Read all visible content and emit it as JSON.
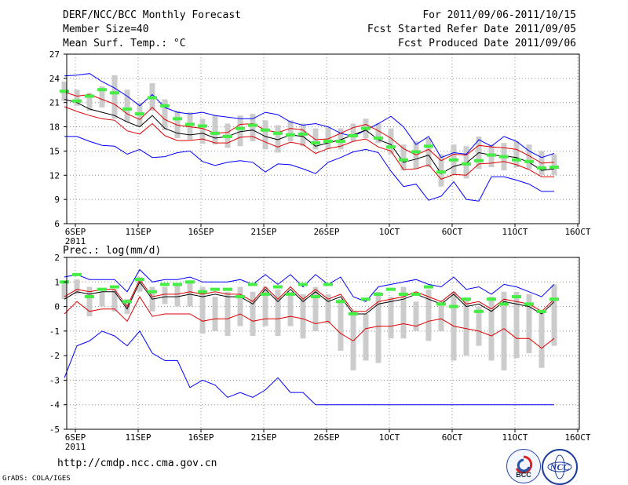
{
  "header": {
    "title": "DERF/NCC/BCC Monthly Forecast",
    "member_size": "Member Size=40",
    "variable1": "Mean Surf. Temp.: °C",
    "period": "For 2011/09/06-2011/10/15",
    "started": "Fcst Started Refer Date 2011/09/05",
    "produced": "Fcst Produced Date 2011/09/06"
  },
  "footer": {
    "url": "http://cmdp.ncc.cma.gov.cn",
    "grads": "GrADS: COLA/IGES",
    "logo_bcc": "BCC",
    "logo_ncc": "NCC"
  },
  "colors": {
    "max": "#0000ff",
    "min": "#0000ff",
    "pct_band": "#dd0000",
    "mean": "#000000",
    "hist": "#44ee44",
    "spread": "#cccccc"
  },
  "chart_data": [
    {
      "type": "line",
      "title": "Mean Surf. Temp.: °C",
      "xlabel": "",
      "ylabel": "°C",
      "x_ticks": [
        {
          "day": 1,
          "label": "6SEP",
          "sub": "2011"
        },
        {
          "day": 6,
          "label": "11SEP"
        },
        {
          "day": 11,
          "label": "16SEP"
        },
        {
          "day": 16,
          "label": "21SEP"
        },
        {
          "day": 21,
          "label": "26SEP"
        },
        {
          "day": 26,
          "label": "1OCT"
        },
        {
          "day": 31,
          "label": "6OCT"
        },
        {
          "day": 36,
          "label": "11OCT"
        },
        {
          "day": 41,
          "label": "16OCT"
        }
      ],
      "ylim": [
        6,
        27
      ],
      "yticks": [
        6,
        9,
        12,
        15,
        18,
        21,
        24,
        27
      ],
      "days": [
        1,
        2,
        3,
        4,
        5,
        6,
        7,
        8,
        9,
        10,
        11,
        12,
        13,
        14,
        15,
        16,
        17,
        18,
        19,
        20,
        21,
        22,
        23,
        24,
        25,
        26,
        27,
        28,
        29,
        30,
        31,
        32,
        33,
        34,
        35,
        36,
        37,
        38,
        39,
        40
      ],
      "series": [
        {
          "name": "max",
          "color_key": "max",
          "values": [
            24.3,
            24.4,
            24.6,
            23.6,
            22.8,
            21.8,
            20.6,
            22.0,
            20.4,
            19.8,
            19.6,
            19.8,
            19.4,
            19.2,
            19.0,
            19.0,
            19.8,
            19.5,
            18.6,
            18.2,
            18.4,
            18.0,
            17.2,
            16.8,
            17.6,
            18.4,
            19.3,
            18.0,
            15.8,
            16.8,
            14.2,
            14.8,
            14.6,
            16.4,
            15.6,
            16.8,
            16.2,
            15.0,
            14.2,
            14.7
          ]
        },
        {
          "name": "p90",
          "color_key": "pct_band",
          "values": [
            22.3,
            21.8,
            22.0,
            21.4,
            20.8,
            19.6,
            18.9,
            20.4,
            18.9,
            18.2,
            18.0,
            17.8,
            17.2,
            17.3,
            18.3,
            18.4,
            17.6,
            17.3,
            17.8,
            17.6,
            16.4,
            16.5,
            17.2,
            17.9,
            18.3,
            17.5,
            16.6,
            15.3,
            14.5,
            15.2,
            13.8,
            14.6,
            14.5,
            15.7,
            15.5,
            15.4,
            15.2,
            14.4,
            13.5,
            13.6
          ]
        },
        {
          "name": "mean",
          "color_key": "mean",
          "values": [
            21.4,
            21.0,
            20.2,
            19.8,
            19.4,
            18.6,
            18.0,
            19.4,
            17.8,
            17.2,
            17.0,
            17.2,
            16.6,
            16.8,
            17.4,
            17.6,
            16.8,
            16.4,
            17.0,
            16.8,
            15.6,
            16.0,
            16.4,
            17.0,
            17.6,
            16.4,
            15.8,
            13.6,
            14.0,
            14.5,
            12.2,
            13.1,
            13.5,
            14.8,
            14.5,
            14.4,
            14.2,
            13.6,
            12.6,
            12.8
          ]
        },
        {
          "name": "p10",
          "color_key": "pct_band",
          "values": [
            20.5,
            19.9,
            19.4,
            19.0,
            18.8,
            17.5,
            17.1,
            18.4,
            16.9,
            16.3,
            16.3,
            16.5,
            16.0,
            16.0,
            16.7,
            16.8,
            16.1,
            15.5,
            16.1,
            15.8,
            14.7,
            15.3,
            15.6,
            16.2,
            16.5,
            15.5,
            15.0,
            12.7,
            12.8,
            13.3,
            11.5,
            12.1,
            12.0,
            13.4,
            13.5,
            13.7,
            13.3,
            12.7,
            11.8,
            11.8
          ]
        },
        {
          "name": "min",
          "color_key": "min",
          "values": [
            16.8,
            16.8,
            16.2,
            15.7,
            15.6,
            14.6,
            15.2,
            14.2,
            14.3,
            14.8,
            15.0,
            13.7,
            13.2,
            13.6,
            13.8,
            13.6,
            12.4,
            13.4,
            13.3,
            12.8,
            12.2,
            13.6,
            14.2,
            14.9,
            15.2,
            14.8,
            12.5,
            10.6,
            10.9,
            8.9,
            9.4,
            11.2,
            9.0,
            8.8,
            11.8,
            11.8,
            11.4,
            10.9,
            10.0,
            10.0
          ]
        }
      ],
      "spread_bars": [
        [
          21.2,
          23.6
        ],
        [
          20.6,
          22.6
        ],
        [
          20.0,
          22.2
        ],
        [
          20.4,
          23.0
        ],
        [
          19.0,
          24.4
        ],
        [
          18.6,
          22.6
        ],
        [
          18.0,
          21.0
        ],
        [
          20.0,
          23.4
        ],
        [
          17.6,
          21.4
        ],
        [
          16.6,
          20.0
        ],
        [
          16.4,
          19.8
        ],
        [
          15.9,
          19.0
        ],
        [
          15.8,
          19.4
        ],
        [
          15.4,
          18.4
        ],
        [
          15.6,
          19.4
        ],
        [
          16.2,
          19.6
        ],
        [
          15.2,
          18.8
        ],
        [
          14.8,
          18.2
        ],
        [
          16.2,
          18.8
        ],
        [
          15.6,
          18.4
        ],
        [
          15.2,
          17.8
        ],
        [
          15.2,
          18.0
        ],
        [
          15.2,
          17.8
        ],
        [
          16.2,
          18.4
        ],
        [
          16.6,
          19.0
        ],
        [
          16.0,
          18.4
        ],
        [
          14.6,
          17.8
        ],
        [
          12.6,
          15.8
        ],
        [
          12.8,
          16.2
        ],
        [
          13.0,
          16.6
        ],
        [
          10.6,
          14.6
        ],
        [
          12.0,
          15.8
        ],
        [
          11.6,
          15.6
        ],
        [
          12.8,
          16.8
        ],
        [
          13.0,
          15.8
        ],
        [
          12.6,
          16.0
        ],
        [
          13.0,
          16.2
        ],
        [
          12.8,
          15.8
        ],
        [
          12.0,
          15.0
        ],
        [
          12.0,
          14.6
        ]
      ],
      "hist_marks": [
        22.4,
        21.2,
        21.8,
        22.6,
        22.2,
        20.2,
        19.6,
        21.6,
        20.6,
        19.0,
        18.3,
        18.1,
        17.2,
        16.8,
        17.8,
        18.2,
        17.6,
        17.2,
        17.0,
        17.1,
        16.0,
        16.2,
        16.2,
        16.9,
        17.8,
        16.6,
        15.5,
        13.9,
        14.9,
        15.6,
        12.4,
        13.9,
        13.4,
        13.8,
        14.5,
        14.3,
        13.9,
        13.7,
        12.9,
        13.0
      ]
    },
    {
      "type": "line",
      "title": "Prec.: log(mm/d)",
      "xlabel": "",
      "ylabel": "log(mm/d)",
      "x_ticks": [
        {
          "day": 1,
          "label": "6SEP",
          "sub": "2011"
        },
        {
          "day": 6,
          "label": "11SEP"
        },
        {
          "day": 11,
          "label": "16SEP"
        },
        {
          "day": 16,
          "label": "21SEP"
        },
        {
          "day": 21,
          "label": "26SEP"
        },
        {
          "day": 26,
          "label": "1OCT"
        },
        {
          "day": 31,
          "label": "6OCT"
        },
        {
          "day": 36,
          "label": "11OCT"
        },
        {
          "day": 41,
          "label": "16OCT"
        }
      ],
      "ylim": [
        -5,
        2
      ],
      "yticks": [
        -5,
        -4,
        -3,
        -2,
        -1,
        0,
        1,
        2
      ],
      "days": [
        1,
        2,
        3,
        4,
        5,
        6,
        7,
        8,
        9,
        10,
        11,
        12,
        13,
        14,
        15,
        16,
        17,
        18,
        19,
        20,
        21,
        22,
        23,
        24,
        25,
        26,
        27,
        28,
        29,
        30,
        31,
        32,
        33,
        34,
        35,
        36,
        37,
        38,
        39,
        40
      ],
      "series": [
        {
          "name": "max",
          "color_key": "max",
          "values": [
            1.2,
            1.3,
            1.1,
            1.1,
            1.1,
            0.6,
            1.5,
            1.0,
            1.1,
            1.1,
            1.2,
            1.0,
            1.0,
            1.0,
            1.1,
            0.9,
            1.3,
            0.9,
            1.3,
            0.8,
            1.3,
            0.9,
            1.2,
            0.4,
            0.2,
            0.8,
            0.9,
            1.0,
            1.1,
            0.9,
            0.8,
            1.2,
            0.7,
            0.8,
            0.5,
            0.9,
            0.8,
            0.6,
            0.4,
            0.9
          ]
        },
        {
          "name": "p90",
          "color_key": "pct_band",
          "values": [
            0.4,
            0.7,
            0.6,
            0.7,
            0.7,
            0.0,
            1.1,
            0.4,
            0.5,
            0.5,
            0.6,
            0.5,
            0.6,
            0.5,
            0.5,
            0.2,
            0.8,
            0.3,
            0.8,
            0.3,
            0.7,
            0.3,
            0.5,
            -0.2,
            -0.2,
            0.2,
            0.3,
            0.4,
            0.6,
            0.4,
            0.2,
            0.6,
            0.1,
            0.2,
            -0.1,
            0.3,
            0.2,
            0.1,
            -0.2,
            0.3
          ]
        },
        {
          "name": "mean",
          "color_key": "mean",
          "values": [
            0.3,
            0.6,
            0.5,
            0.6,
            0.6,
            -0.1,
            1.0,
            0.3,
            0.4,
            0.4,
            0.5,
            0.4,
            0.5,
            0.4,
            0.4,
            0.1,
            0.7,
            0.2,
            0.7,
            0.2,
            0.6,
            0.2,
            0.4,
            -0.3,
            -0.3,
            0.1,
            0.2,
            0.3,
            0.5,
            0.3,
            0.1,
            0.5,
            0.0,
            0.1,
            -0.2,
            0.2,
            0.1,
            0.0,
            -0.3,
            0.2
          ]
        },
        {
          "name": "p10",
          "color_key": "pct_band",
          "values": [
            -0.3,
            0.2,
            -0.2,
            -0.1,
            -0.1,
            -0.6,
            0.4,
            -0.4,
            -0.3,
            -0.3,
            -0.3,
            -0.6,
            -0.5,
            -0.5,
            -0.3,
            -0.6,
            -0.5,
            -0.5,
            -0.4,
            -0.5,
            -0.7,
            -0.6,
            -1.1,
            -1.4,
            -0.9,
            -0.8,
            -0.8,
            -0.7,
            -0.8,
            -0.6,
            -0.5,
            -0.8,
            -0.9,
            -1.0,
            -1.2,
            -0.9,
            -1.3,
            -1.3,
            -1.7,
            -1.3
          ]
        },
        {
          "name": "min",
          "color_key": "min",
          "values": [
            -2.9,
            -1.6,
            -1.4,
            -1.0,
            -1.2,
            -1.6,
            -1.0,
            -1.9,
            -2.2,
            -2.2,
            -3.3,
            -3.0,
            -3.2,
            -3.7,
            -3.5,
            -3.7,
            -3.4,
            -2.9,
            -3.5,
            -3.5,
            -4.0,
            -4.0,
            -4.0,
            -4.0,
            -4.0,
            -4.0,
            -4.0,
            -4.0,
            -4.0,
            -4.0,
            -4.0,
            -4.0,
            -4.0,
            -4.0,
            -4.0,
            -4.0,
            -4.0,
            -4.0,
            -4.0,
            -4.0
          ]
        }
      ],
      "spread_bars": [
        [
          0.3,
          1.0
        ],
        [
          0.5,
          1.1
        ],
        [
          -0.4,
          0.8
        ],
        [
          0.0,
          0.6
        ],
        [
          -0.2,
          0.7
        ],
        [
          -0.3,
          0.3
        ],
        [
          0.6,
          1.2
        ],
        [
          -0.2,
          0.8
        ],
        [
          0.1,
          0.8
        ],
        [
          0.0,
          0.9
        ],
        [
          0.0,
          1.0
        ],
        [
          -1.1,
          0.8
        ],
        [
          -1.0,
          0.4
        ],
        [
          -1.2,
          0.6
        ],
        [
          -0.8,
          0.8
        ],
        [
          -1.2,
          0.6
        ],
        [
          -0.8,
          0.8
        ],
        [
          -1.2,
          0.7
        ],
        [
          -0.8,
          0.6
        ],
        [
          -1.3,
          0.5
        ],
        [
          -1.0,
          0.8
        ],
        [
          -0.7,
          0.5
        ],
        [
          -1.8,
          0.3
        ],
        [
          -2.6,
          -0.2
        ],
        [
          -2.2,
          -0.3
        ],
        [
          -2.3,
          0.6
        ],
        [
          -1.3,
          0.4
        ],
        [
          -1.3,
          0.8
        ],
        [
          -1.0,
          0.2
        ],
        [
          -1.4,
          0.7
        ],
        [
          -1.0,
          0.2
        ],
        [
          -2.2,
          0.6
        ],
        [
          -2.0,
          0.3
        ],
        [
          -1.6,
          0.0
        ],
        [
          -2.2,
          0.4
        ],
        [
          -2.6,
          0.6
        ],
        [
          -2.1,
          0.6
        ],
        [
          -1.9,
          0.5
        ],
        [
          -2.5,
          -0.2
        ],
        [
          -1.6,
          0.9
        ]
      ],
      "hist_marks": [
        1.0,
        1.3,
        0.4,
        0.7,
        0.8,
        0.2,
        1.1,
        0.6,
        0.9,
        0.9,
        1.0,
        0.6,
        0.7,
        0.7,
        0.4,
        0.9,
        0.5,
        0.8,
        0.5,
        0.9,
        0.4,
        0.9,
        0.2,
        -0.3,
        0.3,
        0.5,
        0.7,
        0.5,
        0.5,
        0.8,
        0.1,
        0.0,
        0.3,
        -0.2,
        0.3,
        0.1,
        0.4,
        0.1,
        -0.2,
        0.3
      ]
    }
  ]
}
